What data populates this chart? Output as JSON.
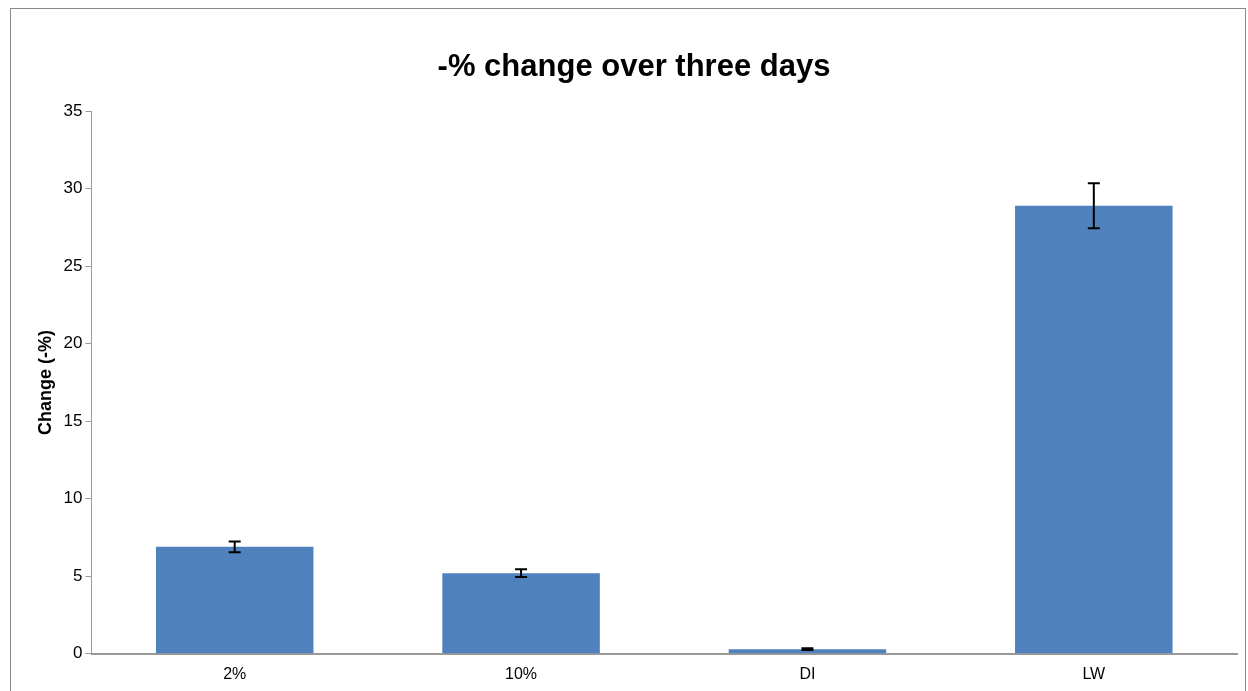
{
  "chart_data": {
    "type": "bar",
    "title": "-% change over three days",
    "ylabel": "Change (-%)",
    "categories": [
      "2%",
      "10%",
      "DI",
      "LW"
    ],
    "series": [
      {
        "color": "#4f81bd",
        "values": [
          6.9,
          5.2,
          0.3,
          28.9
        ],
        "errors": [
          0.35,
          0.25,
          0.05,
          1.45
        ]
      }
    ],
    "ylim": [
      0,
      35
    ],
    "yticks": [
      0,
      5,
      10,
      15,
      20,
      25,
      30,
      35
    ],
    "grid": false,
    "legend": false
  }
}
